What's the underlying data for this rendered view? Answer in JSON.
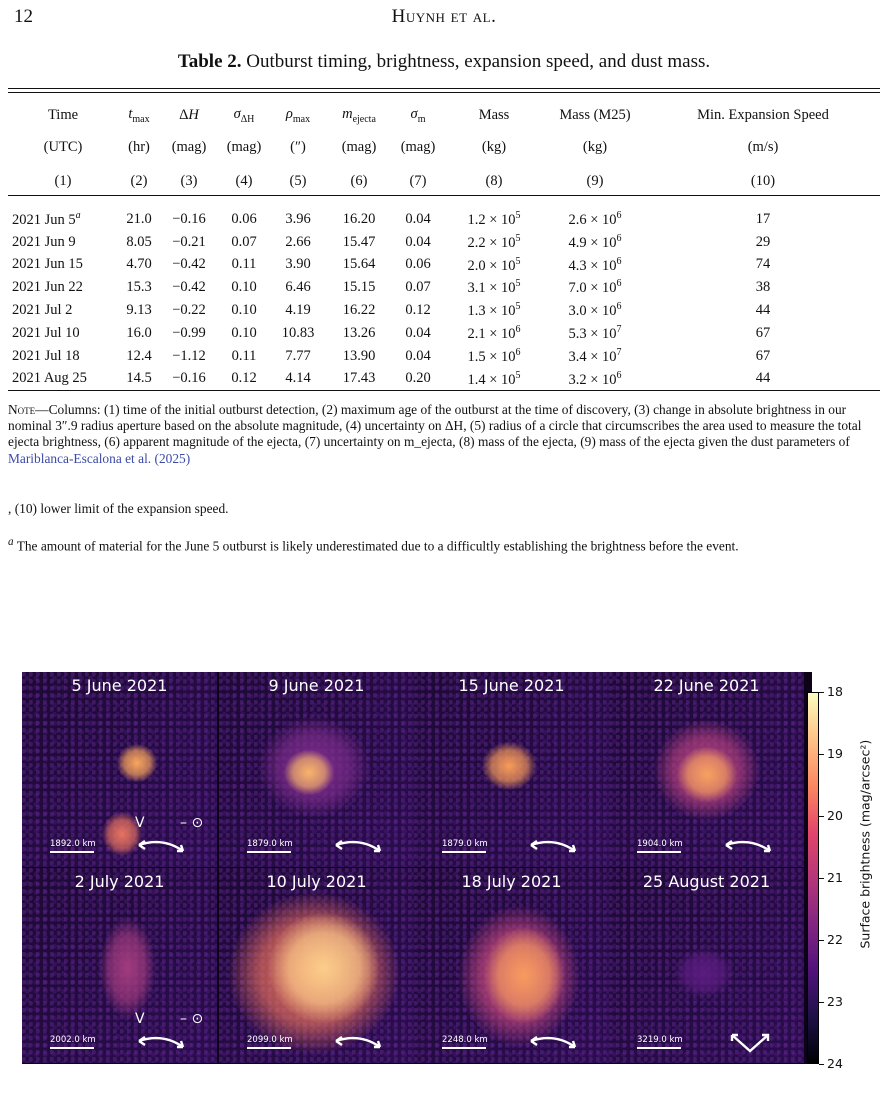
{
  "page_number": "12",
  "running_header": "Huynh et al.",
  "table": {
    "caption_label": "Table 2.",
    "caption_text": "Outburst timing, brightness, expansion speed, and dust mass.",
    "header_names": [
      "Time",
      "t_max",
      "ΔH",
      "σ_ΔH",
      "ρ_max",
      "m_ejecta",
      "σ_m",
      "Mass",
      "Mass (M25)",
      "Min. Expansion Speed"
    ],
    "header_units": [
      "(UTC)",
      "(hr)",
      "(mag)",
      "(mag)",
      "(″)",
      "(mag)",
      "(mag)",
      "(kg)",
      "(kg)",
      "(m/s)"
    ],
    "header_numbers": [
      "(1)",
      "(2)",
      "(3)",
      "(4)",
      "(5)",
      "(6)",
      "(7)",
      "(8)",
      "(9)",
      "(10)"
    ],
    "rows": [
      [
        "2021 Jun 5",
        "21.0",
        "−0.16",
        "0.06",
        "3.96",
        "16.20",
        "0.04",
        "1.2 × 10^5",
        "2.6 × 10^6",
        "17"
      ],
      [
        "2021 Jun 9",
        "8.05",
        "−0.21",
        "0.07",
        "2.66",
        "15.47",
        "0.04",
        "2.2 × 10^5",
        "4.9 × 10^6",
        "29"
      ],
      [
        "2021 Jun 15",
        "4.70",
        "−0.42",
        "0.11",
        "3.90",
        "15.64",
        "0.06",
        "2.0 × 10^5",
        "4.3 × 10^6",
        "74"
      ],
      [
        "2021 Jun 22",
        "15.3",
        "−0.42",
        "0.10",
        "6.46",
        "15.15",
        "0.07",
        "3.1 × 10^5",
        "7.0 × 10^6",
        "38"
      ],
      [
        "2021 Jul 2",
        "9.13",
        "−0.22",
        "0.10",
        "4.19",
        "16.22",
        "0.12",
        "1.3 × 10^5",
        "3.0 × 10^6",
        "44"
      ],
      [
        "2021 Jul 10",
        "16.0",
        "−0.99",
        "0.10",
        "10.83",
        "13.26",
        "0.04",
        "2.1 × 10^6",
        "5.3 × 10^7",
        "67"
      ],
      [
        "2021 Jul 18",
        "12.4",
        "−1.12",
        "0.11",
        "7.77",
        "13.90",
        "0.04",
        "1.5 × 10^6",
        "3.4 × 10^7",
        "67"
      ],
      [
        "2021 Aug 25",
        "14.5",
        "−0.16",
        "0.12",
        "4.14",
        "17.43",
        "0.20",
        "1.4 × 10^5",
        "3.2 × 10^6",
        "44"
      ]
    ],
    "first_row_marker": "a"
  },
  "note": {
    "label": "Note",
    "text_1": "—Columns: (1) time of the initial outburst detection, (2) maximum age of the outburst at the time of discovery, (3) change in absolute brightness in our nominal 3″.9 radius aperture based on the absolute magnitude, (4) uncertainty on ΔH, (5) radius of a circle that circumscribes the area used to measure the total ejecta brightness, (6) apparent magnitude of the ejecta, (7) uncertainty on m_ejecta, (8) mass of the ejecta, (9) mass of the ejecta given the dust parameters of",
    "citation": "Mariblanca-Escalona et al. (2025)",
    "tail": ", (10) lower limit of the expansion speed."
  },
  "footnote": {
    "marker": "a",
    "text": "The amount of material for the June 5 outburst is likely underestimated due to a difficultly establishing the brightness before the event."
  },
  "figure": {
    "panels": [
      {
        "title": "5 June 2021",
        "scale": "1892.0 km"
      },
      {
        "title": "9 June 2021",
        "scale": "1879.0 km"
      },
      {
        "title": "15 June 2021",
        "scale": "1879.0 km"
      },
      {
        "title": "22 June 2021",
        "scale": "1904.0 km"
      },
      {
        "title": "2 July 2021",
        "scale": "2002.0 km"
      },
      {
        "title": "10 July 2021",
        "scale": "2099.0 km"
      },
      {
        "title": "18 July 2021",
        "scale": "2248.0 km"
      },
      {
        "title": "25 August 2021",
        "scale": "3219.0 km"
      }
    ],
    "colorbar": {
      "label": "Surface brightness (mag/arcsec²)",
      "ticks": [
        "18",
        "19",
        "20",
        "21",
        "22",
        "23",
        "24"
      ],
      "colors": [
        "#fcfdbf",
        "#fec287",
        "#fb8861",
        "#e3466a",
        "#b5367a",
        "#822681",
        "#51127c",
        "#1e1147",
        "#000004"
      ]
    },
    "marker_v": "V",
    "marker_sun": "– ⊙"
  }
}
